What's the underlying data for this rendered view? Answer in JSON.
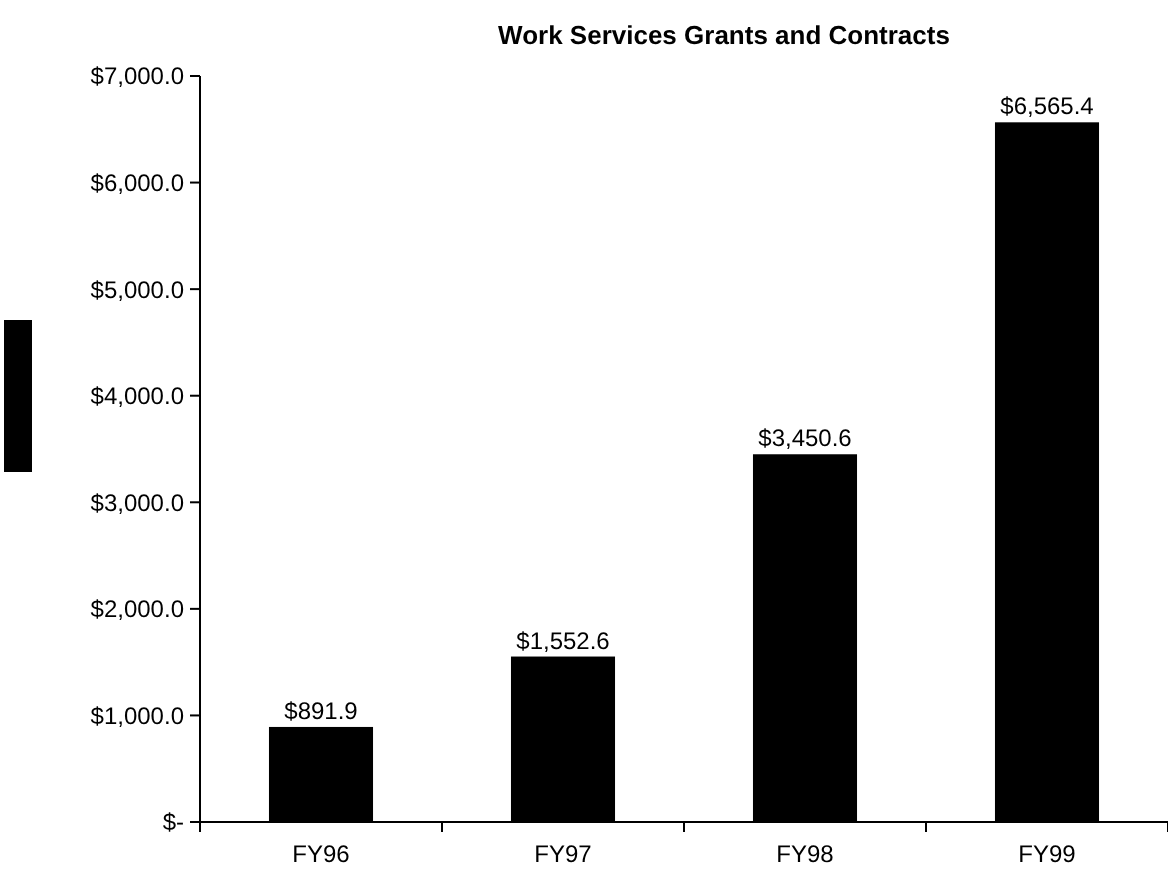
{
  "chart_data": {
    "type": "bar",
    "title": "Work Services Grants and Contracts",
    "categories": [
      "FY96",
      "FY97",
      "FY98",
      "FY99"
    ],
    "values": [
      891.9,
      1552.6,
      3450.6,
      6565.4
    ],
    "value_labels": [
      "$891.9",
      "$1,552.6",
      "$3,450.6",
      "$6,565.4"
    ],
    "color": "#000000",
    "ylim": [
      0,
      7000
    ],
    "yticks": [
      {
        "value": 0,
        "label": "$-"
      },
      {
        "value": 1000,
        "label": "$1,000.0"
      },
      {
        "value": 2000,
        "label": "$2,000.0"
      },
      {
        "value": 3000,
        "label": "$3,000.0"
      },
      {
        "value": 4000,
        "label": "$4,000.0"
      },
      {
        "value": 5000,
        "label": "$5,000.0"
      },
      {
        "value": 6000,
        "label": "$6,000.0"
      },
      {
        "value": 7000,
        "label": "$7,000.0"
      }
    ]
  }
}
